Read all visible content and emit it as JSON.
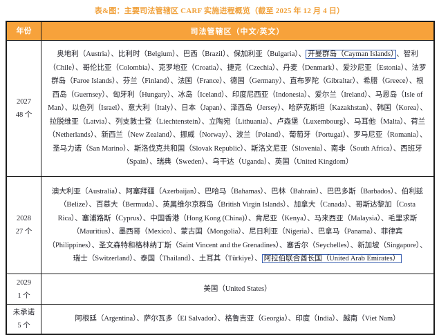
{
  "title": "表&图：主要司法管辖区 CARF 实施进程概览（截至 2025 年 12 月 4 日）",
  "header": {
    "year_col": "年份",
    "jurisdiction_col": "司法管辖区（中文/英文）"
  },
  "colors": {
    "accent_orange": "#F7A23B",
    "highlight_blue": "#3A5FB0",
    "border_dark": "#1B1B1B",
    "header_text": "#FFFFFF"
  },
  "rows": [
    {
      "year": "2027",
      "count": "48 个",
      "segments": [
        {
          "text": "奥地利（Austria）、比利时（Belgium）、巴西（Brazil）、保加利亚（Bulgaria）、",
          "highlight": false
        },
        {
          "text": "开曼群岛（Cayman Islands）",
          "highlight": true
        },
        {
          "text": "、智利（Chile）、哥伦比亚（Colombia）、克罗地亚（Croatia）、捷克（Czechia）、丹麦（Denmark）、爱沙尼亚（Estonia）、法罗群岛（Faroe Islands）、芬兰（Finland）、法国（France）、德国（Germany）、直布罗陀（Gibraltar）、希腊（Greece）、根西岛（Guernsey）、匈牙利（Hungary）、冰岛（Iceland）、印度尼西亚（Indonesia）、爱尔兰（Ireland）、马恩岛（Isle of Man）、以色列（Israel）、意大利（Italy）、日本（Japan）、泽西岛（Jersey）、哈萨克斯坦（Kazakhstan）、韩国（Korea）、拉脱维亚（Latvia）、列支敦士登（Liechtenstein）、立陶宛（Lithuania）、卢森堡（Luxembourg）、马耳他（Malta）、荷兰（Netherlands）、新西兰（New Zealand）、挪威（Norway）、波兰（Poland）、葡萄牙（Portugal）、罗马尼亚（Romania）、圣马力诺（San Marino）、斯洛伐克共和国（Slovak Republic）、斯洛文尼亚（Slovenia）、南非（South Africa）、西班牙（Spain）、瑞典（Sweden）、乌干达（Uganda）、英国（United Kingdom）",
          "highlight": false
        }
      ]
    },
    {
      "year": "2028",
      "count": "27 个",
      "segments": [
        {
          "text": "澳大利亚（Australia）、阿塞拜疆（Azerbaijan）、巴哈马（Bahamas）、巴林（Bahrain）、巴巴多斯（Barbados）、伯利兹（Belize）、百慕大（Bermuda）、英属维尔京群岛（British Virgin Islands）、加拿大（Canada）、哥斯达黎加（Costa Rica）、塞浦路斯（Cyprus）、中国香港（Hong Kong (China)）、肯尼亚（Kenya）、马来西亚（Malaysia）、毛里求斯（Mauritius）、墨西哥（Mexico）、蒙古国（Mongolia）、尼日利亚（Nigeria）、巴拿马（Panama）、菲律宾（Philippines）、圣文森特和格林纳丁斯（Saint Vincent and the Grenadines）、塞舌尔（Seychelles）、新加坡（Singapore）、瑞士（Switzerland）、泰国（Thailand）、土耳其（Türkiye）、",
          "highlight": false
        },
        {
          "text": "阿拉伯联合酋长国（United Arab Emirates）",
          "highlight": true
        }
      ]
    },
    {
      "year": "2029",
      "count": "1 个",
      "segments": [
        {
          "text": "美国（United States）",
          "highlight": false
        }
      ]
    },
    {
      "year": "未承诺",
      "count": "5 个",
      "segments": [
        {
          "text": "阿根廷（Argentina）、萨尔瓦多（El Salvador）、格鲁吉亚（Georgia）、印度（India）、越南（Viet Nam）",
          "highlight": false
        }
      ]
    }
  ]
}
